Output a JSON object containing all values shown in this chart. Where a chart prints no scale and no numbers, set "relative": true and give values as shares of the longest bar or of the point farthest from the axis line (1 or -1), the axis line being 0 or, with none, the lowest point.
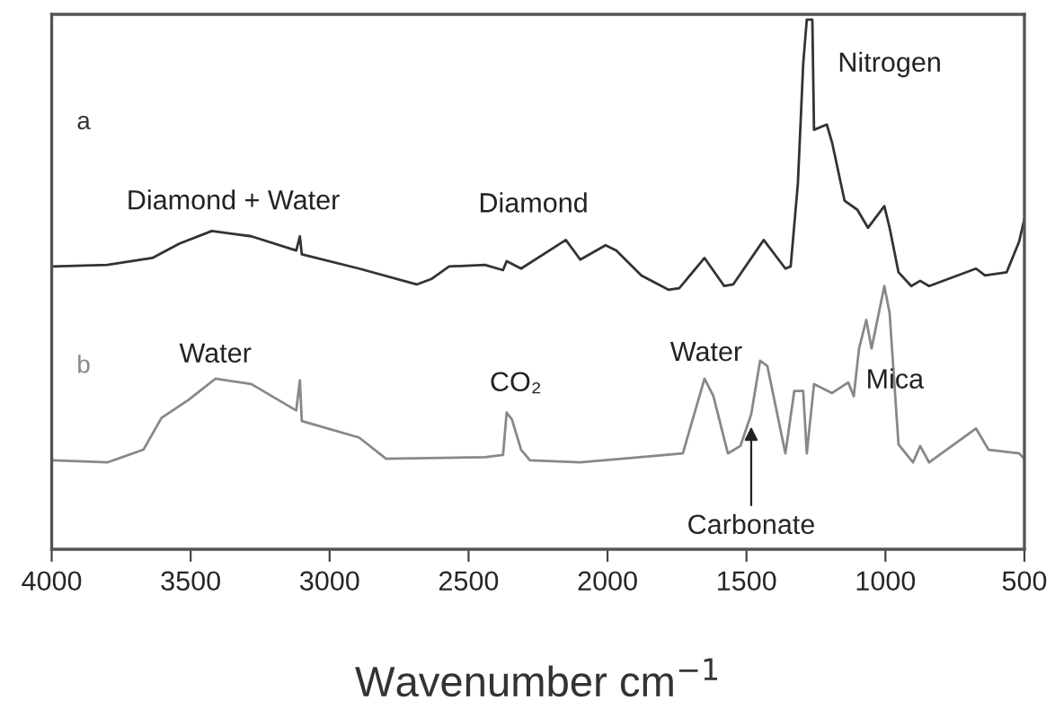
{
  "chart_data": {
    "type": "line",
    "relative": true,
    "xlabel": "Wavenumber cm$^{−1}$",
    "xlim": [
      4000,
      500
    ],
    "xticks": [
      4000,
      3500,
      3000,
      2500,
      2000,
      1500,
      1000,
      500
    ],
    "grid": false,
    "marker": "none",
    "line_style": "solid",
    "tick_labels": "x",
    "series": [
      {
        "name": "a",
        "color": "#333333",
        "x": [
          3994,
          3800,
          3638,
          3541,
          3424,
          3282,
          3120,
          3107,
          3100,
          2894,
          2687,
          2635,
          2570,
          2441,
          2376,
          2363,
          2311,
          2150,
          2098,
          2007,
          1968,
          1878,
          1781,
          1742,
          1651,
          1580,
          1548,
          1438,
          1360,
          1341,
          1315,
          1296,
          1283,
          1263,
          1257,
          1211,
          1192,
          1147,
          1101,
          1063,
          1004,
          985,
          953,
          907,
          875,
          843,
          674,
          642,
          564,
          519,
          500
        ],
        "values": [
          0.534,
          0.537,
          0.55,
          0.577,
          0.601,
          0.591,
          0.564,
          0.591,
          0.557,
          0.53,
          0.5,
          0.51,
          0.534,
          0.537,
          0.527,
          0.544,
          0.53,
          0.584,
          0.547,
          0.574,
          0.564,
          0.517,
          0.49,
          0.493,
          0.55,
          0.497,
          0.5,
          0.584,
          0.53,
          0.534,
          0.691,
          0.916,
          1.0,
          1.0,
          0.792,
          0.802,
          0.768,
          0.658,
          0.641,
          0.607,
          0.648,
          0.607,
          0.523,
          0.497,
          0.507,
          0.497,
          0.53,
          0.517,
          0.523,
          0.581,
          0.624
        ]
      },
      {
        "name": "b",
        "color": "#888888",
        "x": [
          3994,
          3800,
          3670,
          3605,
          3508,
          3411,
          3282,
          3120,
          3107,
          3100,
          2894,
          2797,
          2441,
          2376,
          2363,
          2344,
          2311,
          2279,
          2098,
          1729,
          1651,
          1619,
          1567,
          1522,
          1483,
          1451,
          1425,
          1360,
          1328,
          1296,
          1283,
          1257,
          1192,
          1134,
          1114,
          1095,
          1069,
          1050,
          1004,
          985,
          953,
          901,
          875,
          843,
          674,
          629,
          519,
          500
        ],
        "values": [
          0.168,
          0.164,
          0.188,
          0.248,
          0.282,
          0.322,
          0.312,
          0.262,
          0.319,
          0.242,
          0.211,
          0.171,
          0.174,
          0.178,
          0.258,
          0.245,
          0.188,
          0.168,
          0.164,
          0.181,
          0.322,
          0.289,
          0.181,
          0.195,
          0.255,
          0.356,
          0.346,
          0.181,
          0.299,
          0.299,
          0.181,
          0.312,
          0.295,
          0.315,
          0.289,
          0.379,
          0.433,
          0.379,
          0.497,
          0.446,
          0.198,
          0.164,
          0.195,
          0.164,
          0.228,
          0.188,
          0.181,
          0.171
        ]
      }
    ],
    "annotations": [
      {
        "text": "Diamond + Water",
        "x": 3424,
        "y": 0.601
      },
      {
        "text": "Diamond",
        "x": 2150,
        "y": 0.584
      },
      {
        "text": "Nitrogen",
        "x": 1263,
        "y": 1.0
      },
      {
        "text": "Water",
        "x": 3411,
        "y": 0.322
      },
      {
        "text": "CO₂",
        "x": 2363,
        "y": 0.258
      },
      {
        "text": "Water",
        "x": 1651,
        "y": 0.322
      },
      {
        "text": "Mica",
        "x": 1134,
        "y": 0.315
      },
      {
        "text": "Carbonate",
        "x": 1483,
        "y": 0.255
      }
    ]
  }
}
